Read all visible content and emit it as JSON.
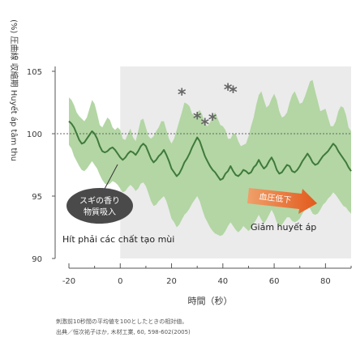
{
  "chart_data": {
    "type": "line",
    "ylabel": "(%) 圧曲線 収縮期 Huyết áp tâm thu",
    "xlabel": "時間（秒）",
    "ylim": [
      90,
      105
    ],
    "xlim": [
      -20,
      90
    ],
    "y_ticks": [
      "90",
      "95",
      "100",
      "105"
    ],
    "x_ticks": [
      "-20",
      "0",
      "20",
      "40",
      "60",
      "80"
    ],
    "baseline": 100,
    "stimulus_start": 0,
    "callout_text": [
      "スギの香り",
      "物質吸入"
    ],
    "stimulus_annotation": "Hít phải các chất tạo mùi",
    "arrow_text": "血圧低下",
    "decrease_annotation": "Giảm huyết áp",
    "significance_marker": "*",
    "significance_marks": [
      {
        "x": 24,
        "y": 103.2
      },
      {
        "x": 30,
        "y": 101.3
      },
      {
        "x": 33,
        "y": 100.8
      },
      {
        "x": 36,
        "y": 101.2
      },
      {
        "x": 42,
        "y": 103.6
      },
      {
        "x": 44,
        "y": 103.4
      }
    ],
    "note_lines": [
      "刺激前10秒間の平均値を100としたときの相対値。",
      "出典／恒次祐子ほか, 木材工業, 60, 598-602(2005)"
    ],
    "series": [
      {
        "x": [
          -20,
          -19,
          -18,
          -17,
          -16,
          -15,
          -14,
          -13,
          -12,
          -11,
          -10,
          -9,
          -8,
          -7,
          -6,
          -5,
          -4,
          -3,
          -2,
          -1,
          0,
          1,
          2,
          3,
          4,
          5,
          6,
          7,
          8,
          9,
          10,
          11,
          12,
          13,
          14,
          15,
          16,
          17,
          18,
          19,
          20,
          21,
          22,
          23,
          24,
          25,
          26,
          27,
          28,
          29,
          30,
          31,
          32,
          33,
          34,
          35,
          36,
          37,
          38,
          39,
          40,
          41,
          42,
          43,
          44,
          45,
          46,
          47,
          48,
          49,
          50,
          51,
          52,
          53,
          54,
          55,
          56,
          57,
          58,
          59,
          60,
          61,
          62,
          63,
          64,
          65,
          66,
          67,
          68,
          69,
          70,
          71,
          72,
          73,
          74,
          75,
          76,
          77,
          78,
          79,
          80,
          81,
          82,
          83,
          84,
          85,
          86,
          87,
          88,
          89,
          90
        ],
        "mean": [
          101.0,
          100.8,
          100.5,
          100.0,
          99.5,
          99.2,
          99.3,
          99.6,
          99.9,
          100.2,
          100.0,
          99.6,
          99.0,
          98.6,
          98.5,
          98.6,
          98.8,
          98.9,
          98.7,
          98.4,
          98.1,
          97.9,
          98.1,
          98.4,
          98.6,
          98.5,
          98.3,
          98.6,
          99.0,
          99.2,
          99.0,
          98.5,
          98.0,
          97.7,
          97.9,
          98.2,
          98.4,
          98.7,
          98.3,
          97.8,
          97.2,
          96.9,
          96.6,
          96.8,
          97.2,
          97.7,
          98.0,
          98.4,
          98.9,
          99.3,
          99.7,
          99.4,
          98.8,
          98.2,
          97.8,
          97.4,
          97.1,
          96.9,
          96.6,
          96.3,
          96.4,
          96.8,
          97.0,
          97.4,
          97.0,
          96.7,
          96.6,
          96.8,
          97.1,
          97.0,
          96.8,
          96.9,
          97.3,
          97.5,
          97.9,
          97.5,
          97.2,
          97.4,
          97.8,
          98.1,
          97.7,
          97.1,
          96.8,
          96.9,
          97.2,
          97.5,
          97.4,
          97.0,
          96.9,
          97.1,
          97.4,
          97.8,
          98.1,
          98.4,
          98.1,
          97.7,
          97.5,
          97.6,
          97.9,
          98.2,
          98.4,
          98.6,
          98.9,
          99.2,
          99.0,
          98.6,
          98.3,
          98.0,
          97.7,
          97.3,
          97.0
        ],
        "upper": [
          102.9,
          102.7,
          102.3,
          101.7,
          101.4,
          101.2,
          101.0,
          101.3,
          102.0,
          102.7,
          102.4,
          101.6,
          100.7,
          100.5,
          100.9,
          101.3,
          101.1,
          100.5,
          100.3,
          100.5,
          100.3,
          99.6,
          99.5,
          100.0,
          100.4,
          99.7,
          99.4,
          100.2,
          101.1,
          101.2,
          100.5,
          99.8,
          99.6,
          99.8,
          100.2,
          100.5,
          101.0,
          101.0,
          100.3,
          99.6,
          99.2,
          99.6,
          100.3,
          101.0,
          101.7,
          102.5,
          102.4,
          102.2,
          101.6,
          101.4,
          101.7,
          101.9,
          101.5,
          100.8,
          100.6,
          100.9,
          101.4,
          101.7,
          101.2,
          100.7,
          100.6,
          100.3,
          99.6,
          99.6,
          100.0,
          100.0,
          99.4,
          99.0,
          99.1,
          99.2,
          99.8,
          100.6,
          101.3,
          102.3,
          103.1,
          103.4,
          102.7,
          102.1,
          102.3,
          102.8,
          103.2,
          102.7,
          101.8,
          101.3,
          101.4,
          101.7,
          102.5,
          103.1,
          103.4,
          102.9,
          102.4,
          102.5,
          103.0,
          103.6,
          104.2,
          104.3,
          103.4,
          102.6,
          101.8,
          101.9,
          102.0,
          101.3,
          100.6,
          100.6,
          101.0,
          101.8,
          102.2,
          102.1,
          101.5,
          100.5,
          100.2
        ],
        "lower": [
          99.1,
          98.8,
          98.2,
          97.8,
          97.4,
          97.1,
          97.0,
          97.2,
          97.5,
          97.8,
          97.5,
          97.2,
          96.7,
          96.3,
          96.0,
          95.9,
          96.0,
          96.2,
          96.1,
          95.9,
          95.6,
          95.3,
          95.4,
          95.7,
          95.9,
          95.7,
          95.4,
          95.6,
          96.0,
          96.1,
          95.8,
          95.2,
          94.6,
          94.2,
          94.3,
          94.6,
          94.8,
          95.0,
          94.6,
          93.9,
          93.2,
          92.9,
          92.5,
          92.7,
          93.1,
          93.5,
          93.7,
          94.0,
          94.4,
          94.7,
          95.0,
          94.6,
          93.9,
          93.3,
          92.9,
          92.5,
          92.2,
          92.0,
          91.9,
          91.8,
          91.9,
          92.2,
          92.6,
          92.9,
          92.6,
          92.3,
          92.1,
          92.3,
          92.6,
          92.4,
          92.2,
          92.4,
          92.8,
          93.1,
          93.5,
          93.1,
          92.8,
          93.1,
          93.5,
          93.9,
          93.5,
          92.9,
          92.6,
          92.7,
          93.0,
          93.3,
          93.3,
          93.0,
          92.9,
          93.0,
          93.2,
          93.6,
          93.9,
          94.2,
          94.0,
          93.6,
          93.5,
          93.6,
          93.9,
          94.3,
          94.5,
          94.8,
          95.0,
          95.3,
          95.1,
          94.8,
          94.5,
          94.2,
          94.1,
          93.8,
          93.6
        ]
      }
    ]
  }
}
